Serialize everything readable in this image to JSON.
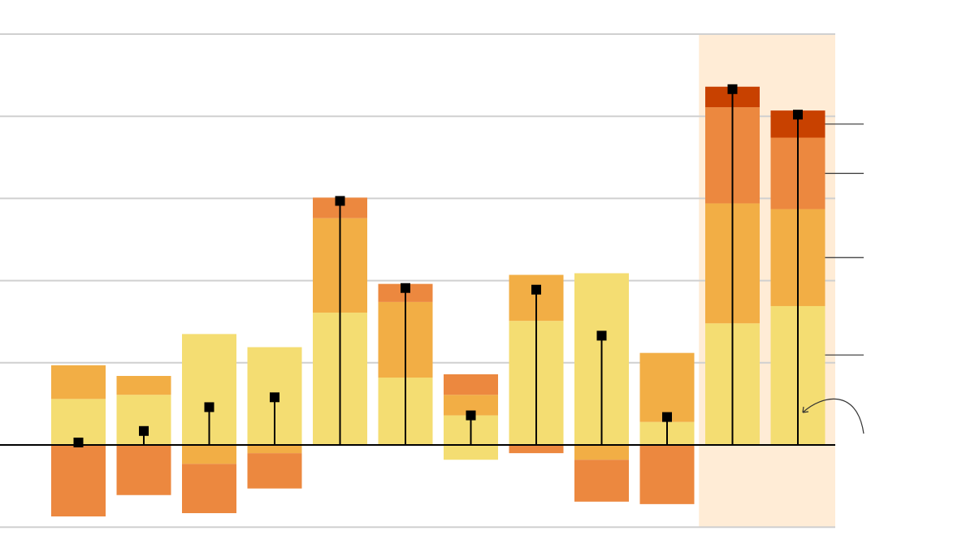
{
  "chart_data": {
    "type": "bar",
    "stacked": true,
    "title": "",
    "xlabel": "",
    "ylabel": "",
    "ylim": [
      -1,
      5
    ],
    "grid": true,
    "legend": "none",
    "categories": [
      "",
      "",
      "",
      "",
      "",
      "",
      "",
      "",
      "",
      "",
      "",
      ""
    ],
    "highlighted_categories": [
      10,
      11
    ],
    "colors": {
      "level1": "#f4dd72",
      "level2": "#f2ae45",
      "level3": "#ec883f",
      "level4": "#c84100",
      "highlight_band": "#ffecd6",
      "grid": "#d0d0d0",
      "zero_line": "#000000",
      "marker": "#000000"
    },
    "series": [
      {
        "key": "level1",
        "values": [
          0.56,
          0.61,
          1.35,
          1.19,
          1.61,
          0.82,
          0.36,
          1.51,
          2.09,
          0.28,
          1.48,
          1.69
        ]
      },
      {
        "key": "level2",
        "values": [
          0.41,
          0.23,
          0,
          0,
          1.15,
          0.92,
          0.25,
          0.56,
          0,
          0.84,
          1.46,
          1.18
        ]
      },
      {
        "key": "level3",
        "values": [
          0,
          0,
          0,
          0,
          0.25,
          0.22,
          0.25,
          0,
          0,
          0,
          1.17,
          0.87
        ]
      },
      {
        "key": "level4",
        "values": [
          0,
          0,
          0,
          0,
          0,
          0,
          0,
          0,
          0,
          0,
          0.25,
          0.33
        ]
      }
    ],
    "negative_series": [
      {
        "key": "level1",
        "values": [
          0,
          0,
          0,
          0,
          0,
          0,
          -0.18,
          0,
          0,
          0,
          0,
          0
        ]
      },
      {
        "key": "level2",
        "values": [
          0,
          0,
          -0.23,
          -0.1,
          0,
          0,
          0,
          0,
          -0.18,
          0,
          0,
          0
        ]
      },
      {
        "key": "level3",
        "values": [
          -0.87,
          -0.61,
          -0.6,
          -0.43,
          0,
          0,
          0,
          -0.1,
          -0.51,
          -0.72,
          0,
          0
        ]
      }
    ],
    "net_values": [
      0.03,
      0.17,
      0.46,
      0.58,
      2.97,
      1.91,
      0.36,
      1.89,
      1.33,
      0.34,
      4.33,
      4.02
    ]
  }
}
